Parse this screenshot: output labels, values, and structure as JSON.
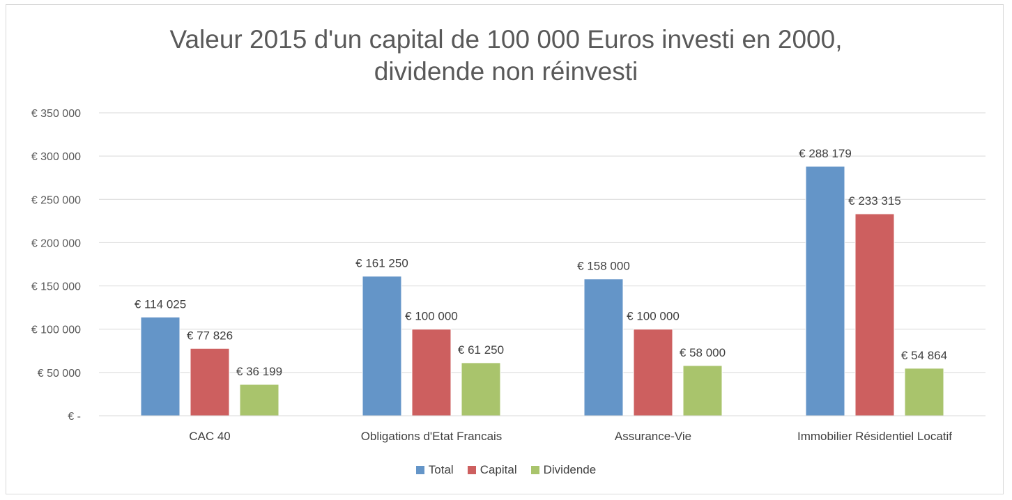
{
  "chart_data": {
    "type": "bar",
    "title_lines": [
      "Valeur 2015 d'un capital de 100 000 Euros investi en 2000,",
      "dividende non réinvesti"
    ],
    "categories": [
      "CAC 40",
      "Obligations d'Etat Francais",
      "Assurance-Vie",
      "Immobilier Résidentiel Locatif"
    ],
    "series": [
      {
        "name": "Total",
        "color": "#6495c8",
        "values": [
          114025,
          161250,
          158000,
          288179
        ],
        "labels": [
          "€ 114 025",
          "€ 161 250",
          "€ 158 000",
          "€ 288 179"
        ]
      },
      {
        "name": "Capital",
        "color": "#cd5f5f",
        "values": [
          77826,
          100000,
          100000,
          233315
        ],
        "labels": [
          "€ 77 826",
          "€ 100 000",
          "€ 100 000",
          "€ 233 315"
        ]
      },
      {
        "name": "Dividende",
        "color": "#a9c46c",
        "values": [
          36199,
          61250,
          58000,
          54864
        ],
        "labels": [
          "€ 36 199",
          "€ 61 250",
          "€ 58 000",
          "€ 54 864"
        ]
      }
    ],
    "ylim": [
      0,
      350000
    ],
    "ytick_values": [
      0,
      50000,
      100000,
      150000,
      200000,
      250000,
      300000,
      350000
    ],
    "ytick_labels": [
      "€ -",
      "€ 50 000",
      "€ 100 000",
      "€ 150 000",
      "€ 200 000",
      "€ 250 000",
      "€ 300 000",
      "€ 350 000"
    ],
    "grid": true,
    "legend_position": "bottom"
  }
}
